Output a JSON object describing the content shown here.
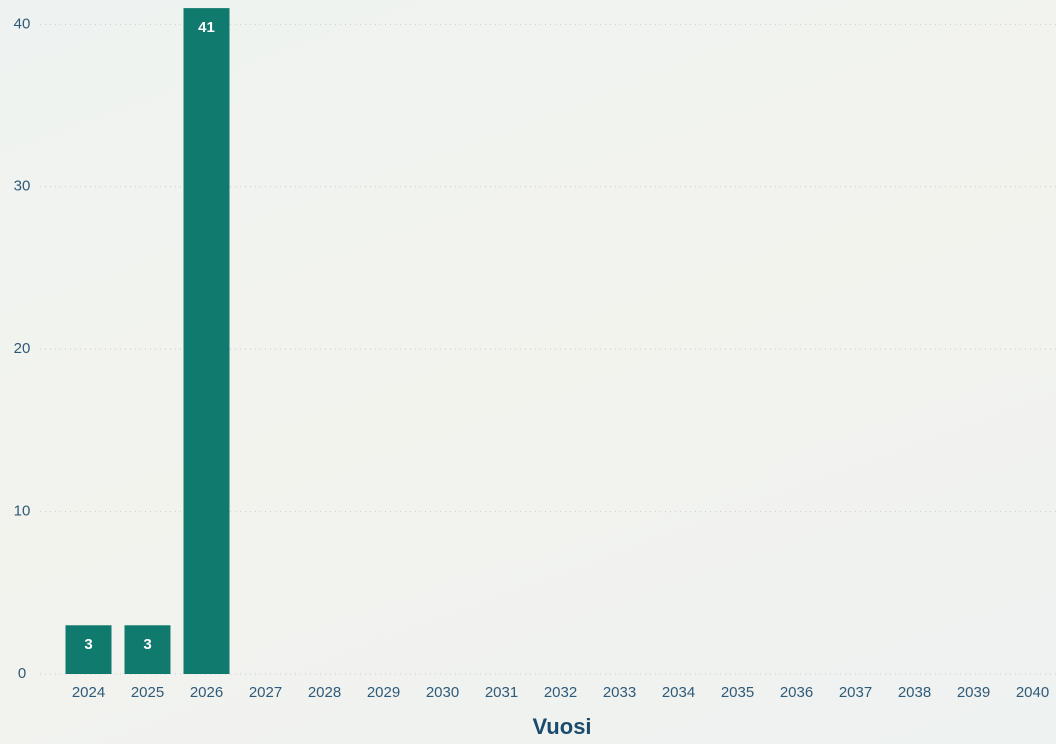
{
  "chart_data": {
    "type": "bar",
    "x_label": "Vuosi",
    "categories": [
      "2024",
      "2025",
      "2026",
      "2027",
      "2028",
      "2029",
      "2030",
      "2031",
      "2032",
      "2033",
      "2034",
      "2035",
      "2036",
      "2037",
      "2038",
      "2039",
      "2040"
    ],
    "values": [
      3,
      3,
      41,
      null,
      null,
      null,
      null,
      null,
      null,
      null,
      null,
      null,
      null,
      null,
      null,
      null,
      null
    ],
    "color": "#0f7a6d",
    "ylim": [
      0,
      41.5
    ],
    "yticks": [
      0,
      10,
      20,
      30,
      40
    ],
    "grid": true
  }
}
